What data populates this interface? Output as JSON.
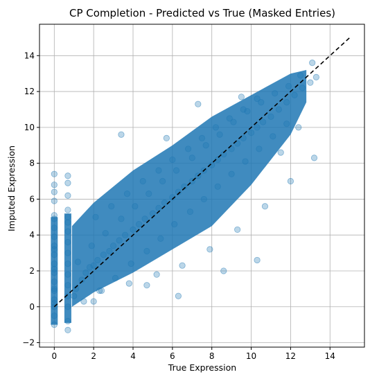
{
  "chart_data": {
    "type": "scatter",
    "title": "CP Completion - Predicted vs True (Masked Entries)",
    "xlabel": "True Expression",
    "ylabel": "Imputed Expression",
    "xlim": [
      -0.75,
      15.75
    ],
    "ylim": [
      -2.25,
      15.75
    ],
    "xticks": [
      0,
      2,
      4,
      6,
      8,
      10,
      12,
      14
    ],
    "yticks": [
      -2,
      0,
      2,
      4,
      6,
      8,
      10,
      12,
      14
    ],
    "grid": true,
    "point_color": "#1f77b4",
    "point_alpha": 0.3,
    "reference_line": {
      "style": "dashed",
      "color": "#000000",
      "x": [
        0,
        15
      ],
      "y": [
        0,
        15
      ]
    },
    "series": [
      {
        "points_note_values": "estimated representative points; dense cloud along diagonal",
        "x": [
          0,
          0,
          0,
          0,
          0,
          0,
          0,
          0,
          0,
          0,
          0,
          0,
          0,
          0,
          0,
          0,
          0,
          0,
          0,
          0,
          0,
          0,
          0.69,
          0.69,
          0.69,
          0.69,
          0.69,
          0.69,
          0.69,
          0.69,
          0.69,
          0.69,
          0.69,
          0.69,
          0.69,
          0.69,
          0.69,
          0.69,
          1.1,
          1.4,
          1.6,
          1.8,
          2.0,
          2.2,
          2.5,
          2.8,
          3.0,
          3.3,
          3.6,
          4.0,
          4.3,
          4.6,
          5.0,
          5.3,
          5.6,
          6.0,
          6.3,
          6.6,
          7.0,
          7.3,
          7.6,
          8.0,
          8.3,
          8.6,
          9.0,
          9.3,
          9.6,
          10.0,
          10.3,
          10.6,
          11.0,
          11.4,
          11.8,
          12.2,
          12.6,
          13.0,
          13.3,
          1.2,
          1.9,
          2.6,
          3.4,
          4.1,
          4.8,
          5.5,
          6.2,
          7.0,
          7.7,
          8.4,
          9.1,
          9.8,
          10.5,
          11.2,
          11.9,
          12.5,
          1.5,
          2.3,
          3.1,
          3.9,
          4.7,
          5.4,
          6.1,
          6.9,
          7.6,
          8.3,
          9.0,
          9.7,
          10.4,
          11.1,
          11.8,
          2.1,
          2.9,
          3.7,
          4.5,
          5.3,
          6.0,
          6.8,
          7.5,
          8.2,
          8.9,
          9.6,
          10.3,
          1.0,
          2.4,
          3.8,
          5.2,
          6.5,
          7.9,
          9.3,
          10.7,
          12.0,
          13.2,
          3.4,
          5.7,
          7.3,
          10.3,
          6.3,
          8.6,
          4.7,
          2.0,
          11.5,
          12.4,
          13.1,
          9.5
        ],
        "y": [
          -1.0,
          -0.5,
          0,
          0.4,
          0.9,
          1.4,
          1.9,
          2.4,
          2.9,
          3.4,
          3.9,
          4.4,
          4.9,
          5.1,
          5.9,
          6.4,
          6.8,
          7.4,
          3.2,
          2.1,
          1.0,
          0.2,
          -1.3,
          -0.8,
          0,
          0.6,
          1.2,
          1.8,
          2.4,
          3.0,
          3.6,
          4.2,
          4.7,
          5.4,
          6.2,
          6.9,
          7.3,
          5.0,
          1.0,
          1.5,
          1.9,
          2.2,
          2.3,
          2.6,
          2.9,
          3.1,
          3.4,
          3.7,
          4.0,
          4.3,
          4.6,
          4.9,
          5.2,
          5.5,
          5.8,
          6.1,
          6.4,
          6.7,
          7.0,
          7.3,
          7.6,
          7.9,
          8.2,
          8.5,
          8.8,
          9.1,
          9.4,
          9.7,
          10.0,
          10.3,
          10.6,
          11.0,
          11.4,
          11.8,
          12.2,
          12.5,
          12.8,
          2.5,
          3.4,
          4.1,
          4.9,
          5.6,
          6.3,
          7.0,
          7.6,
          8.3,
          9.0,
          9.6,
          10.3,
          10.9,
          11.4,
          11.9,
          12.3,
          12.9,
          0.3,
          0.9,
          1.6,
          2.4,
          3.1,
          3.8,
          4.6,
          5.3,
          6.0,
          6.7,
          7.4,
          8.1,
          8.8,
          9.5,
          10.2,
          5.0,
          5.6,
          6.3,
          7.0,
          7.6,
          8.2,
          8.8,
          9.4,
          10.0,
          10.5,
          11.0,
          11.6,
          0.6,
          0.9,
          1.3,
          1.8,
          2.3,
          3.2,
          4.3,
          5.6,
          7.0,
          8.3,
          9.6,
          9.4,
          11.3,
          2.6,
          0.6,
          2.0,
          1.2,
          0.3,
          8.6,
          10.0,
          13.6,
          11.7
        ]
      }
    ]
  }
}
